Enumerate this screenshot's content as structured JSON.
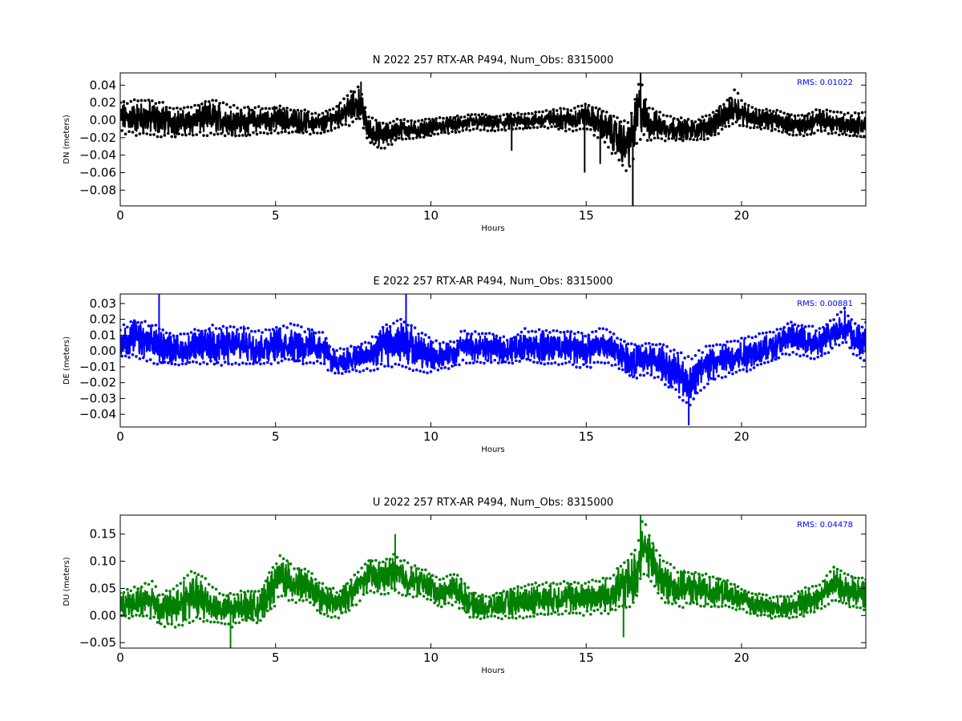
{
  "chart_data": [
    {
      "type": "line",
      "title": "N 2022 257 RTX-AR  P494, Num_Obs: 8315000",
      "xlabel": "Hours",
      "ylabel": "DN (meters)",
      "color": "#000000",
      "rms_label": "RMS:  0.01022",
      "xlim": [
        0,
        24
      ],
      "ylim": [
        -0.098,
        0.054
      ],
      "x_ticks": [
        0,
        5,
        10,
        15,
        20
      ],
      "x_tick_labels": [
        "0",
        "5",
        "10",
        "15",
        "20"
      ],
      "y_ticks": [
        0.04,
        0.02,
        0.0,
        -0.02,
        -0.04,
        -0.06,
        -0.08
      ],
      "y_tick_labels": [
        "0.04",
        "0.02",
        "0.00",
        "−0.02",
        "−0.04",
        "−0.06",
        "−0.08"
      ],
      "grid": false,
      "series": [
        {
          "x": [
            0,
            0.5,
            1,
            1.5,
            2,
            2.5,
            3,
            3.5,
            4,
            4.5,
            5,
            5.5,
            6,
            6.5,
            7,
            7.5,
            7.7,
            8,
            8.5,
            9,
            9.5,
            10,
            10.5,
            11,
            11.5,
            12,
            12.5,
            13,
            13.5,
            14,
            14.5,
            15,
            15.5,
            16,
            16.3,
            16.5,
            16.7,
            17,
            17.5,
            18,
            18.5,
            19,
            19.5,
            19.8,
            20,
            20.5,
            21,
            21.5,
            22,
            22.5,
            23,
            23.5,
            24
          ],
          "center": [
            0.003,
            0.003,
            0.002,
            0.0,
            -0.003,
            0.001,
            0.003,
            0.0,
            -0.002,
            0.0,
            0.001,
            -0.001,
            -0.002,
            -0.005,
            0.005,
            0.015,
            0.02,
            -0.012,
            -0.018,
            -0.01,
            -0.012,
            -0.008,
            -0.006,
            -0.004,
            -0.002,
            -0.004,
            -0.002,
            -0.001,
            0.0,
            0.002,
            0.0,
            0.005,
            -0.005,
            -0.02,
            -0.03,
            -0.015,
            0.015,
            -0.003,
            -0.008,
            -0.01,
            -0.012,
            -0.006,
            0.006,
            0.015,
            0.008,
            0.002,
            0.0,
            -0.004,
            -0.006,
            0.0,
            -0.003,
            -0.006,
            -0.005
          ],
          "amp": [
            0.018,
            0.02,
            0.022,
            0.018,
            0.016,
            0.018,
            0.02,
            0.018,
            0.016,
            0.015,
            0.016,
            0.015,
            0.013,
            0.012,
            0.013,
            0.02,
            0.02,
            0.016,
            0.014,
            0.012,
            0.01,
            0.01,
            0.009,
            0.009,
            0.009,
            0.009,
            0.009,
            0.009,
            0.009,
            0.011,
            0.013,
            0.015,
            0.018,
            0.025,
            0.03,
            0.03,
            0.035,
            0.02,
            0.015,
            0.013,
            0.012,
            0.014,
            0.016,
            0.02,
            0.015,
            0.012,
            0.012,
            0.012,
            0.012,
            0.013,
            0.013,
            0.013,
            0.015
          ]
        }
      ],
      "spikes": [
        {
          "x": 7.75,
          "y": 0.044
        },
        {
          "x": 12.6,
          "y": -0.035
        },
        {
          "x": 14.95,
          "y": -0.06
        },
        {
          "x": 15.45,
          "y": -0.05
        },
        {
          "x": 16.5,
          "y": -0.098
        },
        {
          "x": 16.75,
          "y": 0.054
        }
      ]
    },
    {
      "type": "line",
      "title": "E 2022 257 RTX-AR  P494, Num_Obs: 8315000",
      "xlabel": "Hours",
      "ylabel": "DE (meters)",
      "color": "#0000ff",
      "rms_label": "RMS:  0.00881",
      "xlim": [
        0,
        24
      ],
      "ylim": [
        -0.048,
        0.036
      ],
      "x_ticks": [
        0,
        5,
        10,
        15,
        20
      ],
      "x_tick_labels": [
        "0",
        "5",
        "10",
        "15",
        "20"
      ],
      "y_ticks": [
        0.03,
        0.02,
        0.01,
        0.0,
        -0.01,
        -0.02,
        -0.03,
        -0.04
      ],
      "y_tick_labels": [
        "0.03",
        "0.02",
        "0.01",
        "0.00",
        "−0.01",
        "−0.02",
        "−0.03",
        "−0.04"
      ],
      "grid": false,
      "series": [
        {
          "x": [
            0,
            0.5,
            1,
            1.5,
            2,
            2.5,
            3,
            3.5,
            4,
            4.5,
            5,
            5.5,
            6,
            6.5,
            6.8,
            7,
            7.5,
            8,
            8.5,
            9,
            9.3,
            9.8,
            10.2,
            10.8,
            11,
            11.5,
            12,
            12.5,
            13,
            13.5,
            14,
            14.5,
            15,
            15.5,
            16,
            16.5,
            17,
            17.5,
            18,
            18.3,
            18.7,
            19,
            19.5,
            20,
            20.5,
            21,
            21.5,
            22,
            22.5,
            23,
            23.3,
            23.7,
            24
          ],
          "center": [
            0.005,
            0.008,
            0.005,
            0.002,
            0.0,
            0.003,
            0.004,
            0.003,
            0.004,
            0.002,
            0.004,
            0.005,
            0.003,
            0.002,
            -0.006,
            -0.007,
            -0.005,
            -0.003,
            0.003,
            0.005,
            0.002,
            -0.002,
            -0.003,
            -0.002,
            0.003,
            0.002,
            0.002,
            0.0,
            0.004,
            0.002,
            0.003,
            0.002,
            0.0,
            0.004,
            0.0,
            -0.007,
            -0.005,
            -0.008,
            -0.015,
            -0.02,
            -0.012,
            -0.008,
            -0.005,
            -0.003,
            0.0,
            0.003,
            0.008,
            0.007,
            0.004,
            0.012,
            0.016,
            0.006,
            0.006
          ],
          "amp": [
            0.01,
            0.012,
            0.012,
            0.011,
            0.01,
            0.011,
            0.012,
            0.012,
            0.012,
            0.011,
            0.011,
            0.012,
            0.011,
            0.01,
            0.008,
            0.008,
            0.008,
            0.01,
            0.013,
            0.015,
            0.016,
            0.012,
            0.009,
            0.008,
            0.01,
            0.01,
            0.009,
            0.008,
            0.01,
            0.011,
            0.011,
            0.011,
            0.011,
            0.011,
            0.01,
            0.011,
            0.011,
            0.012,
            0.014,
            0.016,
            0.013,
            0.012,
            0.011,
            0.011,
            0.011,
            0.01,
            0.01,
            0.01,
            0.01,
            0.01,
            0.011,
            0.01,
            0.012
          ]
        }
      ],
      "spikes": [
        {
          "x": 1.25,
          "y": 0.036
        },
        {
          "x": 9.2,
          "y": 0.036
        },
        {
          "x": 18.3,
          "y": -0.047
        }
      ]
    },
    {
      "type": "line",
      "title": "U 2022 257 RTX-AR  P494, Num_Obs: 8315000",
      "xlabel": "Hours",
      "ylabel": "DU (meters)",
      "color": "#008000",
      "rms_label": "RMS:  0.04478",
      "xlim": [
        0,
        24
      ],
      "ylim": [
        -0.06,
        0.185
      ],
      "x_ticks": [
        0,
        5,
        10,
        15,
        20
      ],
      "x_tick_labels": [
        "0",
        "5",
        "10",
        "15",
        "20"
      ],
      "y_ticks": [
        0.15,
        0.1,
        0.05,
        0.0,
        -0.05
      ],
      "y_tick_labels": [
        "0.15",
        "0.10",
        "0.05",
        "0.00",
        "−0.05"
      ],
      "grid": false,
      "series": [
        {
          "x": [
            0,
            0.5,
            1,
            1.3,
            1.8,
            2.3,
            2.8,
            3.2,
            3.6,
            4,
            4.5,
            5,
            5.2,
            5.5,
            6,
            6.5,
            7,
            7.5,
            8,
            8.5,
            8.8,
            9.3,
            9.8,
            10.3,
            10.8,
            11.3,
            11.8,
            12.3,
            12.8,
            13.3,
            13.8,
            14.3,
            14.8,
            15.3,
            15.8,
            16.3,
            16.6,
            16.8,
            17.1,
            17.5,
            18,
            18.5,
            19,
            19.5,
            20,
            20.5,
            21,
            21.5,
            22,
            22.5,
            23,
            23.5,
            24
          ],
          "center": [
            0.02,
            0.025,
            0.03,
            0.01,
            0.02,
            0.035,
            0.025,
            0.012,
            0.01,
            0.02,
            0.015,
            0.06,
            0.075,
            0.06,
            0.055,
            0.03,
            0.02,
            0.045,
            0.075,
            0.07,
            0.08,
            0.065,
            0.06,
            0.04,
            0.05,
            0.02,
            0.015,
            0.02,
            0.025,
            0.03,
            0.03,
            0.035,
            0.03,
            0.035,
            0.04,
            0.06,
            0.07,
            0.13,
            0.1,
            0.06,
            0.05,
            0.05,
            0.045,
            0.04,
            0.03,
            0.02,
            0.015,
            0.015,
            0.025,
            0.035,
            0.06,
            0.045,
            0.04
          ],
          "amp": [
            0.025,
            0.028,
            0.035,
            0.03,
            0.04,
            0.045,
            0.04,
            0.03,
            0.03,
            0.028,
            0.03,
            0.04,
            0.04,
            0.035,
            0.03,
            0.03,
            0.025,
            0.03,
            0.03,
            0.03,
            0.035,
            0.03,
            0.025,
            0.025,
            0.03,
            0.025,
            0.02,
            0.025,
            0.03,
            0.03,
            0.03,
            0.03,
            0.03,
            0.03,
            0.035,
            0.045,
            0.05,
            0.05,
            0.045,
            0.04,
            0.035,
            0.03,
            0.03,
            0.025,
            0.02,
            0.02,
            0.02,
            0.02,
            0.025,
            0.025,
            0.03,
            0.03,
            0.03
          ]
        }
      ],
      "spikes": [
        {
          "x": 3.55,
          "y": -0.06
        },
        {
          "x": 8.85,
          "y": 0.15
        },
        {
          "x": 16.2,
          "y": -0.04
        },
        {
          "x": 16.75,
          "y": 0.185
        }
      ]
    }
  ]
}
